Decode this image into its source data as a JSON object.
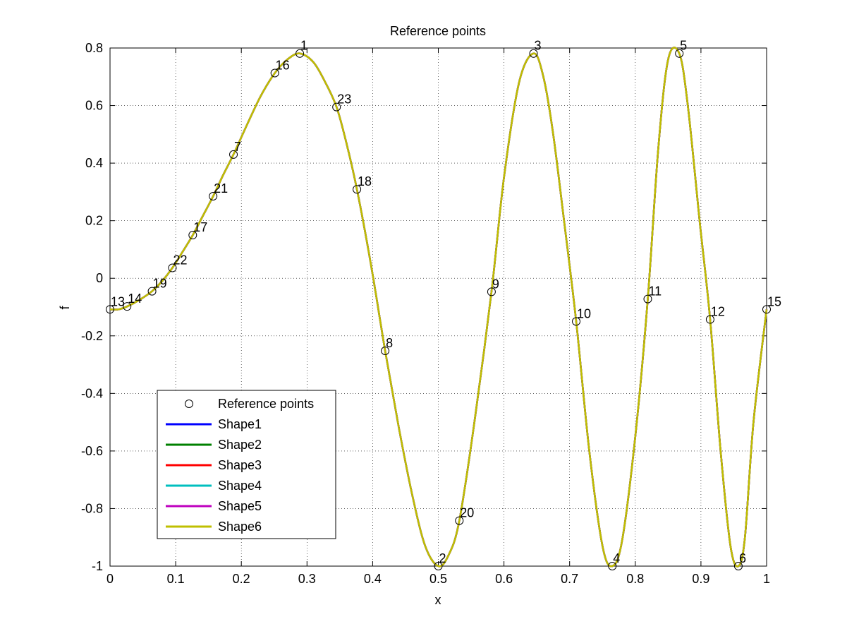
{
  "chart_data": {
    "type": "line",
    "title": "Reference points",
    "xlabel": "x",
    "ylabel": "f",
    "xlim": [
      0,
      1
    ],
    "ylim": [
      -1,
      0.8
    ],
    "grid": true,
    "legend_position": "lower-left",
    "x_ticks": [
      "0",
      "0.1",
      "0.2",
      "0.3",
      "0.4",
      "0.5",
      "0.6",
      "0.7",
      "0.8",
      "0.9",
      "1"
    ],
    "y_ticks": [
      "-1",
      "-0.8",
      "-0.6",
      "-0.4",
      "-0.2",
      "0",
      "0.2",
      "0.4",
      "0.6",
      "0.8"
    ],
    "reference_points": {
      "name": "Reference points",
      "points": [
        {
          "label": "1",
          "x": 0.289,
          "y": 0.781
        },
        {
          "label": "2",
          "x": 0.5,
          "y": -1.0
        },
        {
          "label": "3",
          "x": 0.645,
          "y": 0.781
        },
        {
          "label": "4",
          "x": 0.765,
          "y": -1.0
        },
        {
          "label": "5",
          "x": 0.867,
          "y": 0.781
        },
        {
          "label": "6",
          "x": 0.957,
          "y": -1.0
        },
        {
          "label": "7",
          "x": 0.188,
          "y": 0.43
        },
        {
          "label": "8",
          "x": 0.419,
          "y": -0.252
        },
        {
          "label": "9",
          "x": 0.581,
          "y": -0.047
        },
        {
          "label": "10",
          "x": 0.71,
          "y": -0.15
        },
        {
          "label": "11",
          "x": 0.819,
          "y": -0.072
        },
        {
          "label": "12",
          "x": 0.914,
          "y": -0.143
        },
        {
          "label": "13",
          "x": 0.0,
          "y": -0.108
        },
        {
          "label": "14",
          "x": 0.026,
          "y": -0.098
        },
        {
          "label": "15",
          "x": 1.0,
          "y": -0.108
        },
        {
          "label": "16",
          "x": 0.251,
          "y": 0.713
        },
        {
          "label": "17",
          "x": 0.126,
          "y": 0.15
        },
        {
          "label": "18",
          "x": 0.376,
          "y": 0.309
        },
        {
          "label": "19",
          "x": 0.064,
          "y": -0.045
        },
        {
          "label": "20",
          "x": 0.532,
          "y": -0.842
        },
        {
          "label": "21",
          "x": 0.157,
          "y": 0.285
        },
        {
          "label": "22",
          "x": 0.095,
          "y": 0.036
        },
        {
          "label": "23",
          "x": 0.345,
          "y": 0.595
        }
      ]
    },
    "series": [
      {
        "name": "Shape1",
        "color": "#0000ff"
      },
      {
        "name": "Shape2",
        "color": "#008000"
      },
      {
        "name": "Shape3",
        "color": "#ff0000"
      },
      {
        "name": "Shape4",
        "color": "#00bfbf"
      },
      {
        "name": "Shape5",
        "color": "#bf00bf"
      },
      {
        "name": "Shape6",
        "color": "#bfbf00"
      }
    ],
    "curve": {
      "x": [
        0.0,
        0.013,
        0.026,
        0.045,
        0.064,
        0.08,
        0.095,
        0.11,
        0.126,
        0.141,
        0.157,
        0.172,
        0.188,
        0.21,
        0.23,
        0.251,
        0.27,
        0.289,
        0.31,
        0.328,
        0.345,
        0.36,
        0.376,
        0.398,
        0.419,
        0.44,
        0.46,
        0.48,
        0.5,
        0.516,
        0.532,
        0.555,
        0.581,
        0.6,
        0.623,
        0.645,
        0.66,
        0.675,
        0.692,
        0.71,
        0.73,
        0.75,
        0.765,
        0.78,
        0.8,
        0.819,
        0.835,
        0.85,
        0.867,
        0.88,
        0.898,
        0.914,
        0.93,
        0.945,
        0.957,
        0.967,
        0.98,
        1.0
      ],
      "y": [
        -0.108,
        -0.108,
        -0.098,
        -0.075,
        -0.045,
        -0.008,
        0.036,
        0.09,
        0.15,
        0.215,
        0.285,
        0.357,
        0.43,
        0.54,
        0.635,
        0.713,
        0.76,
        0.781,
        0.75,
        0.68,
        0.595,
        0.47,
        0.309,
        0.04,
        -0.252,
        -0.52,
        -0.75,
        -0.93,
        -1.0,
        -0.96,
        -0.842,
        -0.5,
        -0.047,
        0.35,
        0.68,
        0.781,
        0.7,
        0.5,
        0.19,
        -0.15,
        -0.6,
        -0.93,
        -1.0,
        -0.91,
        -0.55,
        -0.072,
        0.45,
        0.76,
        0.781,
        0.6,
        0.2,
        -0.143,
        -0.6,
        -0.93,
        -1.0,
        -0.9,
        -0.5,
        -0.108
      ]
    }
  }
}
